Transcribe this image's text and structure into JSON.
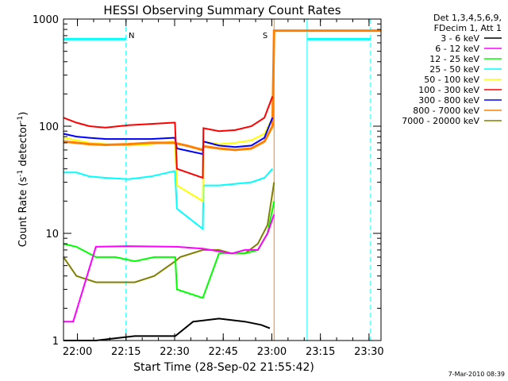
{
  "chart_data": {
    "type": "line",
    "title": "HESSI Observing Summary Count Rates",
    "xlabel": "Start Time (28-Sep-02 21:55:42)",
    "ylabel_main": "Count Rate (s",
    "ylabel_sup1": "-1",
    "ylabel_mid": " detector",
    "ylabel_sup2": "-1",
    "ylabel_end": ")",
    "yscale": "log",
    "ylim": [
      1,
      1000
    ],
    "xlim_minutes": [
      0,
      98
    ],
    "x_ticks": [
      {
        "m": 4.3,
        "label": "22:00"
      },
      {
        "m": 19.3,
        "label": "22:15"
      },
      {
        "m": 34.3,
        "label": "22:30"
      },
      {
        "m": 49.3,
        "label": "22:45"
      },
      {
        "m": 64.3,
        "label": "23:00"
      },
      {
        "m": 79.3,
        "label": "23:15"
      },
      {
        "m": 94.3,
        "label": "23:30"
      }
    ],
    "y_ticks": [
      {
        "v": 1,
        "label": "1"
      },
      {
        "v": 10,
        "label": "10"
      },
      {
        "v": 100,
        "label": "100"
      },
      {
        "v": 1000,
        "label": "1000"
      }
    ],
    "legend_header": [
      "Det 1,3,4,5,6,9,",
      "FDecim 1, Att 1"
    ],
    "series": [
      {
        "name": "3 - 6 keV",
        "color": "#000000",
        "x": [
          0,
          10,
          22,
          34.5,
          40,
          48,
          56,
          61,
          63.7
        ],
        "y": [
          1,
          1,
          1.1,
          1.1,
          1.5,
          1.6,
          1.5,
          1.4,
          1.3
        ]
      },
      {
        "name": "6 - 12 keV",
        "color": "#ff00ff",
        "x": [
          0,
          3,
          10,
          20,
          34.5,
          35,
          43,
          48,
          52,
          56,
          60,
          63,
          65
        ],
        "y": [
          1.5,
          1.5,
          7.5,
          7.6,
          7.5,
          7.5,
          7.2,
          6.8,
          6.5,
          7,
          7,
          10,
          15
        ]
      },
      {
        "name": "12 - 25 keV",
        "color": "#00ff00",
        "x": [
          0,
          4,
          10,
          16,
          22,
          28,
          34.5,
          35,
          43,
          48,
          52,
          56,
          60,
          63,
          65
        ],
        "y": [
          8,
          7.5,
          6,
          6,
          5.5,
          6,
          6,
          3,
          2.5,
          6.5,
          6.5,
          6.5,
          7,
          10,
          20
        ]
      },
      {
        "name": "25 - 50 keV",
        "color": "#00ffff",
        "x": [
          0,
          4,
          8,
          13,
          20,
          27,
          34,
          34.4,
          35,
          43,
          43.2,
          48,
          53,
          58,
          62,
          64.5
        ],
        "y": [
          37,
          37,
          34,
          33,
          32,
          34,
          38,
          38,
          17,
          11,
          28,
          28,
          29,
          30,
          33,
          40
        ]
      },
      {
        "name": "50 - 100 keV",
        "color": "#ffff00",
        "x": [
          0,
          4,
          8,
          13,
          20,
          27,
          34,
          34.4,
          35,
          43,
          43.2,
          48,
          53,
          58,
          62,
          64.5
        ],
        "y": [
          78,
          74,
          70,
          68,
          66,
          68,
          72,
          72,
          28,
          20,
          72,
          68,
          70,
          74,
          85,
          120
        ]
      },
      {
        "name": "100 - 300 keV",
        "color": "#ff0000",
        "x": [
          0,
          4,
          8,
          13,
          20,
          27,
          34,
          34.4,
          35,
          43,
          43.2,
          48,
          53,
          58,
          62,
          64.5
        ],
        "y": [
          120,
          108,
          100,
          97,
          102,
          105,
          108,
          108,
          40,
          33,
          96,
          90,
          92,
          100,
          120,
          190
        ]
      },
      {
        "name": "300 - 800 keV",
        "color": "#0000ff",
        "x": [
          0,
          4,
          8,
          13,
          20,
          27,
          34,
          34.4,
          35,
          43,
          43.2,
          48,
          53,
          58,
          62,
          64.5
        ],
        "y": [
          85,
          80,
          78,
          76,
          76,
          76,
          78,
          78,
          62,
          55,
          72,
          66,
          64,
          66,
          78,
          120
        ]
      },
      {
        "name": "800 - 7000 keV",
        "color": "#ff8000",
        "x": [
          0,
          4,
          8,
          13,
          20,
          27,
          34,
          38,
          43,
          43.2,
          48,
          53,
          58,
          62,
          64.5,
          65,
          98
        ],
        "y": [
          72,
          70,
          68,
          67,
          68,
          70,
          70,
          66,
          60,
          65,
          62,
          60,
          62,
          72,
          100,
          780,
          780
        ]
      },
      {
        "name": "7000 - 20000 keV",
        "color": "#808000",
        "x": [
          0,
          4,
          10,
          16,
          22,
          28,
          34.5,
          36,
          43,
          48,
          52,
          56,
          60,
          63,
          65
        ],
        "y": [
          6,
          4,
          3.5,
          3.5,
          3.5,
          4,
          5.5,
          6,
          7,
          7,
          6.5,
          6.5,
          8,
          12,
          30
        ]
      }
    ],
    "annotations": [
      {
        "text": "N",
        "color": "#00ffff",
        "m": 19.3
      },
      {
        "text": "S",
        "color": "#ff8000",
        "m": 63.7
      }
    ],
    "night_bar": {
      "color": "#00ffff",
      "value": 650
    },
    "markers": [
      {
        "color": "#00ffff",
        "m": 0
      },
      {
        "color": "#00ffff",
        "m": 19.3
      },
      {
        "color": "#ff8000",
        "m": 65
      },
      {
        "color": "#00ffff",
        "m": 75.2
      },
      {
        "color": "#00ffff",
        "m": 94.8
      }
    ],
    "footer": "7-Mar-2010 08:39"
  }
}
